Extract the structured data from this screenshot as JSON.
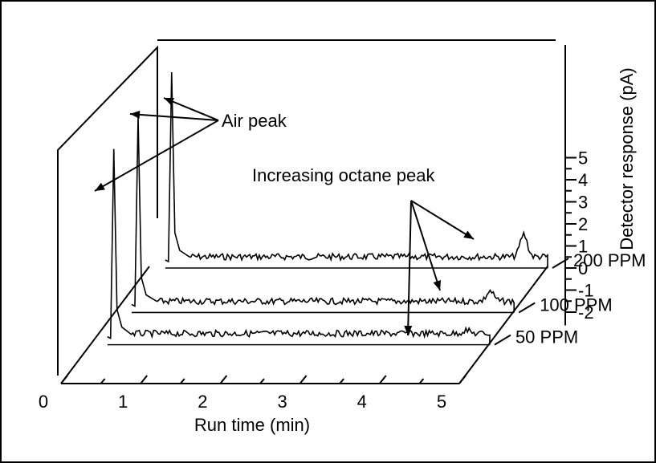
{
  "chart_data": {
    "type": "line",
    "projection": "3d-waterfall",
    "xlabel": "Run time (min)",
    "ylabel": "Detector response (pA)",
    "x_ticks": [
      "0",
      "1",
      "2",
      "3",
      "4",
      "5"
    ],
    "xlim": [
      0,
      5
    ],
    "y_ticks": [
      "5",
      "4",
      "3",
      "2",
      "1",
      "0",
      "-1",
      "-2"
    ],
    "ylim": [
      -2.6,
      5
    ],
    "series": [
      {
        "name": "50 PPM",
        "air_peak_height": 4.6,
        "octane_peak_time": 4.7,
        "octane_peak_height": 0.15
      },
      {
        "name": "100 PPM",
        "air_peak_height": 4.6,
        "octane_peak_time": 4.7,
        "octane_peak_height": 0.45
      },
      {
        "name": "200 PPM",
        "air_peak_height": 4.6,
        "octane_peak_time": 4.7,
        "octane_peak_height": 1.0
      }
    ],
    "annotations": [
      {
        "text": "Air peak"
      },
      {
        "text": "Increasing octane peak"
      }
    ],
    "colors": {
      "line": "#000000",
      "background": "#ffffff"
    }
  }
}
